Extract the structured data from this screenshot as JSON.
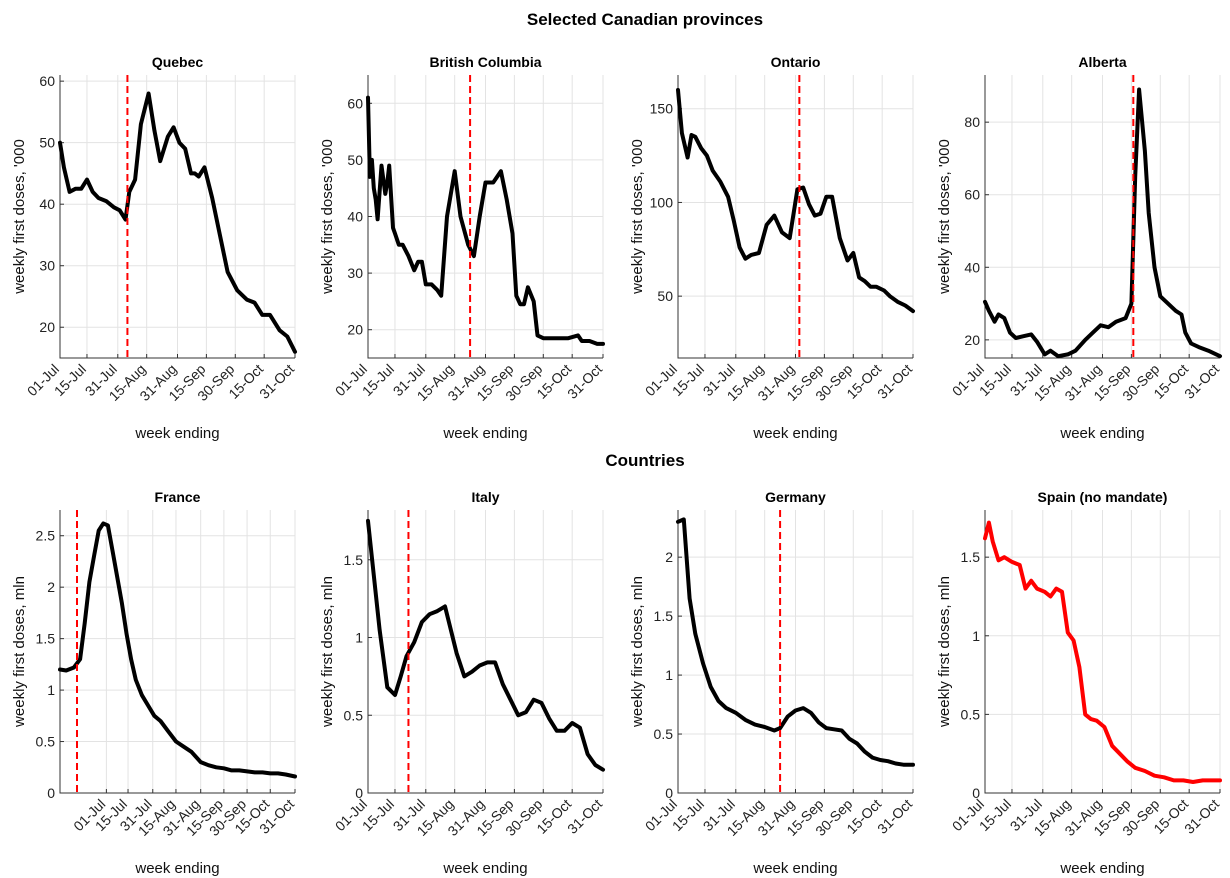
{
  "figure": {
    "section_titles": [
      "Selected Canadian provinces",
      "Countries"
    ]
  },
  "chart_data": [
    {
      "type": "line",
      "title": "Quebec",
      "xlabel": "week ending",
      "ylabel": "weekly first doses, '000",
      "x_ticks": [
        "01-Jul",
        "15-Jul",
        "31-Jul",
        "15-Aug",
        "31-Aug",
        "15-Sep",
        "30-Sep",
        "15-Oct",
        "31-Oct"
      ],
      "xlim": [
        "2021-07-01",
        "2021-10-31"
      ],
      "ylim": [
        15,
        61
      ],
      "y_ticks": [
        20,
        30,
        40,
        50,
        60
      ],
      "grid": true,
      "mandate_date": "2021-08-05",
      "series": [
        {
          "color": "#000000",
          "x": [
            "2021-07-01",
            "2021-07-03",
            "2021-07-06",
            "2021-07-09",
            "2021-07-12",
            "2021-07-15",
            "2021-07-18",
            "2021-07-21",
            "2021-07-25",
            "2021-07-29",
            "2021-08-01",
            "2021-08-04",
            "2021-08-06",
            "2021-08-09",
            "2021-08-12",
            "2021-08-16",
            "2021-08-19",
            "2021-08-22",
            "2021-08-26",
            "2021-08-29",
            "2021-09-01",
            "2021-09-04",
            "2021-09-07",
            "2021-09-09",
            "2021-09-11",
            "2021-09-14",
            "2021-09-18",
            "2021-09-22",
            "2021-09-26",
            "2021-10-01",
            "2021-10-06",
            "2021-10-10",
            "2021-10-14",
            "2021-10-18",
            "2021-10-23",
            "2021-10-27",
            "2021-10-31"
          ],
          "y": [
            50,
            46,
            42,
            42.5,
            42.5,
            44,
            42,
            41,
            40.5,
            39.5,
            39,
            37.5,
            42,
            44,
            53,
            58,
            52,
            47,
            51,
            52.5,
            50,
            49,
            45,
            45,
            44.5,
            46,
            41,
            35,
            29,
            26,
            24.5,
            24,
            22,
            22,
            19.5,
            18.5,
            16
          ]
        }
      ]
    },
    {
      "type": "line",
      "title": "British Columbia",
      "xlabel": "week ending",
      "ylabel": "weekly first doses, '000",
      "x_ticks": [
        "01-Jul",
        "15-Jul",
        "31-Jul",
        "15-Aug",
        "31-Aug",
        "15-Sep",
        "30-Sep",
        "15-Oct",
        "31-Oct"
      ],
      "xlim": [
        "2021-07-01",
        "2021-10-31"
      ],
      "ylim": [
        15,
        65
      ],
      "y_ticks": [
        20,
        30,
        40,
        50,
        60
      ],
      "grid": true,
      "mandate_date": "2021-08-23",
      "series": [
        {
          "color": "#000000",
          "x": [
            "2021-07-01",
            "2021-07-02",
            "2021-07-03",
            "2021-07-04",
            "2021-07-05",
            "2021-07-06",
            "2021-07-08",
            "2021-07-10",
            "2021-07-11",
            "2021-07-12",
            "2021-07-14",
            "2021-07-15",
            "2021-07-17",
            "2021-07-19",
            "2021-07-22",
            "2021-07-25",
            "2021-07-27",
            "2021-07-29",
            "2021-07-31",
            "2021-08-03",
            "2021-08-06",
            "2021-08-08",
            "2021-08-11",
            "2021-08-15",
            "2021-08-18",
            "2021-08-22",
            "2021-08-25",
            "2021-08-28",
            "2021-08-31",
            "2021-09-04",
            "2021-09-08",
            "2021-09-11",
            "2021-09-14",
            "2021-09-16",
            "2021-09-18",
            "2021-09-20",
            "2021-09-22",
            "2021-09-25",
            "2021-09-27",
            "2021-09-30",
            "2021-10-02",
            "2021-10-05",
            "2021-10-08",
            "2021-10-13",
            "2021-10-18",
            "2021-10-20",
            "2021-10-24",
            "2021-10-28",
            "2021-10-31"
          ],
          "y": [
            61,
            47,
            50,
            45,
            43,
            39.5,
            49,
            44,
            46,
            49,
            38,
            37,
            35,
            35,
            33,
            30.5,
            32,
            32,
            28,
            28,
            27,
            26,
            40,
            48,
            40,
            35,
            33,
            40,
            46,
            46,
            48,
            43,
            37,
            26,
            24.5,
            24.5,
            27.5,
            25,
            19,
            18.5,
            18.5,
            18.5,
            18.5,
            18.5,
            19,
            18,
            18,
            17.5,
            17.5
          ]
        }
      ]
    },
    {
      "type": "line",
      "title": "Ontario",
      "xlabel": "week ending",
      "ylabel": "weekly first doses, '000",
      "x_ticks": [
        "01-Jul",
        "15-Jul",
        "31-Jul",
        "15-Aug",
        "31-Aug",
        "15-Sep",
        "30-Sep",
        "15-Oct",
        "31-Oct"
      ],
      "xlim": [
        "2021-07-01",
        "2021-10-31"
      ],
      "ylim": [
        17,
        168
      ],
      "y_ticks": [
        50,
        100,
        150
      ],
      "grid": true,
      "mandate_date": "2021-09-02",
      "series": [
        {
          "color": "#000000",
          "x": [
            "2021-07-01",
            "2021-07-03",
            "2021-07-06",
            "2021-07-08",
            "2021-07-10",
            "2021-07-13",
            "2021-07-16",
            "2021-07-19",
            "2021-07-23",
            "2021-07-27",
            "2021-07-30",
            "2021-08-02",
            "2021-08-05",
            "2021-08-08",
            "2021-08-12",
            "2021-08-16",
            "2021-08-20",
            "2021-08-24",
            "2021-08-28",
            "2021-09-01",
            "2021-09-04",
            "2021-09-07",
            "2021-09-10",
            "2021-09-13",
            "2021-09-16",
            "2021-09-19",
            "2021-09-23",
            "2021-09-27",
            "2021-09-30",
            "2021-10-03",
            "2021-10-06",
            "2021-10-09",
            "2021-10-12",
            "2021-10-16",
            "2021-10-19",
            "2021-10-23",
            "2021-10-27",
            "2021-10-31"
          ],
          "y": [
            160,
            137,
            124,
            136,
            135,
            129,
            125,
            117,
            111,
            103,
            90,
            76,
            70,
            72,
            73,
            88,
            93,
            84,
            81,
            107,
            108,
            99,
            93,
            94,
            103,
            103,
            81,
            69,
            73,
            60,
            58,
            55,
            55,
            53,
            50,
            47,
            45,
            42
          ]
        }
      ]
    },
    {
      "type": "line",
      "title": "Alberta",
      "xlabel": "week ending",
      "ylabel": "weekly first doses, '000",
      "x_ticks": [
        "01-Jul",
        "15-Jul",
        "31-Jul",
        "15-Aug",
        "31-Aug",
        "15-Sep",
        "30-Sep",
        "15-Oct",
        "31-Oct"
      ],
      "xlim": [
        "2021-07-01",
        "2021-10-31"
      ],
      "ylim": [
        15,
        93
      ],
      "y_ticks": [
        20,
        40,
        60,
        80
      ],
      "grid": true,
      "mandate_date": "2021-09-16",
      "series": [
        {
          "color": "#000000",
          "x": [
            "2021-07-01",
            "2021-07-03",
            "2021-07-06",
            "2021-07-08",
            "2021-07-11",
            "2021-07-14",
            "2021-07-17",
            "2021-07-21",
            "2021-07-25",
            "2021-07-28",
            "2021-08-01",
            "2021-08-04",
            "2021-08-08",
            "2021-08-13",
            "2021-08-17",
            "2021-08-22",
            "2021-08-26",
            "2021-08-30",
            "2021-09-03",
            "2021-09-07",
            "2021-09-12",
            "2021-09-15",
            "2021-09-17",
            "2021-09-19",
            "2021-09-22",
            "2021-09-24",
            "2021-09-27",
            "2021-09-30",
            "2021-10-04",
            "2021-10-08",
            "2021-10-11",
            "2021-10-13",
            "2021-10-16",
            "2021-10-20",
            "2021-10-25",
            "2021-10-31"
          ],
          "y": [
            30.5,
            28,
            25,
            27,
            26,
            22,
            20.5,
            21,
            21.5,
            19.5,
            16,
            17,
            15.5,
            16,
            17,
            20,
            22,
            24,
            23.5,
            25,
            26,
            30,
            65,
            89,
            72,
            55,
            40,
            32,
            30,
            28,
            27,
            22,
            19,
            18,
            17,
            15.5
          ]
        }
      ]
    },
    {
      "type": "line",
      "title": "France",
      "xlabel": "week ending",
      "ylabel": "weekly first doses, mln",
      "x_ticks": [
        "01-Jul",
        "15-Jul",
        "31-Jul",
        "15-Aug",
        "31-Aug",
        "15-Sep",
        "30-Sep",
        "15-Oct",
        "31-Oct"
      ],
      "xlim": [
        "2021-06-01",
        "2021-10-31"
      ],
      "ylim": [
        0,
        2.75
      ],
      "y_ticks": [
        0,
        0.5,
        1,
        1.5,
        2,
        2.5
      ],
      "grid": true,
      "mandate_date": "2021-06-12",
      "series": [
        {
          "color": "#000000",
          "x": [
            "2021-06-01",
            "2021-06-05",
            "2021-06-10",
            "2021-06-14",
            "2021-06-17",
            "2021-06-20",
            "2021-06-23",
            "2021-06-26",
            "2021-06-29",
            "2021-07-02",
            "2021-07-05",
            "2021-07-08",
            "2021-07-11",
            "2021-07-14",
            "2021-07-17",
            "2021-07-20",
            "2021-07-24",
            "2021-07-28",
            "2021-08-01",
            "2021-08-05",
            "2021-08-10",
            "2021-08-15",
            "2021-08-20",
            "2021-08-25",
            "2021-08-31",
            "2021-09-05",
            "2021-09-10",
            "2021-09-15",
            "2021-09-20",
            "2021-09-25",
            "2021-09-30",
            "2021-10-05",
            "2021-10-10",
            "2021-10-15",
            "2021-10-20",
            "2021-10-25",
            "2021-10-31"
          ],
          "y": [
            1.2,
            1.19,
            1.22,
            1.3,
            1.65,
            2.05,
            2.3,
            2.55,
            2.62,
            2.6,
            2.35,
            2.1,
            1.85,
            1.55,
            1.3,
            1.1,
            0.95,
            0.85,
            0.75,
            0.7,
            0.6,
            0.5,
            0.45,
            0.4,
            0.3,
            0.27,
            0.25,
            0.24,
            0.22,
            0.22,
            0.21,
            0.2,
            0.2,
            0.19,
            0.19,
            0.18,
            0.16
          ]
        }
      ]
    },
    {
      "type": "line",
      "title": "Italy",
      "xlabel": "week ending",
      "ylabel": "weekly first doses, mln",
      "x_ticks": [
        "01-Jul",
        "15-Jul",
        "31-Jul",
        "15-Aug",
        "31-Aug",
        "15-Sep",
        "30-Sep",
        "15-Oct",
        "31-Oct"
      ],
      "xlim": [
        "2021-07-01",
        "2021-10-31"
      ],
      "ylim": [
        0,
        1.82
      ],
      "y_ticks": [
        0,
        0.5,
        1,
        1.5
      ],
      "grid": true,
      "mandate_date": "2021-07-22",
      "series": [
        {
          "color": "#000000",
          "x": [
            "2021-07-01",
            "2021-07-04",
            "2021-07-07",
            "2021-07-11",
            "2021-07-15",
            "2021-07-18",
            "2021-07-21",
            "2021-07-25",
            "2021-07-29",
            "2021-08-02",
            "2021-08-06",
            "2021-08-10",
            "2021-08-13",
            "2021-08-16",
            "2021-08-20",
            "2021-08-24",
            "2021-08-28",
            "2021-09-01",
            "2021-09-05",
            "2021-09-09",
            "2021-09-13",
            "2021-09-17",
            "2021-09-21",
            "2021-09-25",
            "2021-09-29",
            "2021-10-03",
            "2021-10-07",
            "2021-10-11",
            "2021-10-15",
            "2021-10-19",
            "2021-10-23",
            "2021-10-27",
            "2021-10-31"
          ],
          "y": [
            1.75,
            1.4,
            1.05,
            0.68,
            0.63,
            0.75,
            0.88,
            0.97,
            1.1,
            1.15,
            1.17,
            1.2,
            1.05,
            0.9,
            0.75,
            0.78,
            0.82,
            0.84,
            0.84,
            0.7,
            0.6,
            0.5,
            0.52,
            0.6,
            0.58,
            0.48,
            0.4,
            0.4,
            0.45,
            0.42,
            0.25,
            0.18,
            0.15
          ]
        }
      ]
    },
    {
      "type": "line",
      "title": "Germany",
      "xlabel": "week ending",
      "ylabel": "weekly first doses, mln",
      "x_ticks": [
        "01-Jul",
        "15-Jul",
        "31-Jul",
        "15-Aug",
        "31-Aug",
        "15-Sep",
        "30-Sep",
        "15-Oct",
        "31-Oct"
      ],
      "xlim": [
        "2021-07-01",
        "2021-10-31"
      ],
      "ylim": [
        0,
        2.4
      ],
      "y_ticks": [
        0,
        0.5,
        1,
        1.5,
        2
      ],
      "grid": true,
      "mandate_date": "2021-08-23",
      "series": [
        {
          "color": "#000000",
          "x": [
            "2021-07-01",
            "2021-07-04",
            "2021-07-07",
            "2021-07-10",
            "2021-07-14",
            "2021-07-18",
            "2021-07-22",
            "2021-07-26",
            "2021-07-31",
            "2021-08-05",
            "2021-08-10",
            "2021-08-15",
            "2021-08-20",
            "2021-08-23",
            "2021-08-27",
            "2021-08-31",
            "2021-09-04",
            "2021-09-08",
            "2021-09-12",
            "2021-09-16",
            "2021-09-20",
            "2021-09-24",
            "2021-09-28",
            "2021-10-02",
            "2021-10-06",
            "2021-10-10",
            "2021-10-14",
            "2021-10-18",
            "2021-10-22",
            "2021-10-26",
            "2021-10-31"
          ],
          "y": [
            2.3,
            2.32,
            1.65,
            1.35,
            1.1,
            0.9,
            0.78,
            0.72,
            0.68,
            0.62,
            0.58,
            0.56,
            0.53,
            0.55,
            0.65,
            0.7,
            0.72,
            0.68,
            0.6,
            0.55,
            0.54,
            0.53,
            0.46,
            0.42,
            0.35,
            0.3,
            0.28,
            0.27,
            0.25,
            0.24,
            0.24
          ]
        }
      ]
    },
    {
      "type": "line",
      "title": "Spain (no mandate)",
      "xlabel": "week ending",
      "ylabel": "weekly first doses, mln",
      "x_ticks": [
        "01-Jul",
        "15-Jul",
        "31-Jul",
        "15-Aug",
        "31-Aug",
        "15-Sep",
        "30-Sep",
        "15-Oct",
        "31-Oct"
      ],
      "xlim": [
        "2021-07-01",
        "2021-10-31"
      ],
      "ylim": [
        0,
        1.8
      ],
      "y_ticks": [
        0,
        0.5,
        1,
        1.5
      ],
      "grid": true,
      "mandate_date": null,
      "series": [
        {
          "color": "#ff0000",
          "x": [
            "2021-07-01",
            "2021-07-03",
            "2021-07-05",
            "2021-07-08",
            "2021-07-11",
            "2021-07-15",
            "2021-07-19",
            "2021-07-22",
            "2021-07-25",
            "2021-07-28",
            "2021-08-01",
            "2021-08-04",
            "2021-08-07",
            "2021-08-10",
            "2021-08-13",
            "2021-08-16",
            "2021-08-19",
            "2021-08-22",
            "2021-08-25",
            "2021-08-28",
            "2021-09-01",
            "2021-09-05",
            "2021-09-09",
            "2021-09-13",
            "2021-09-17",
            "2021-09-22",
            "2021-09-27",
            "2021-10-02",
            "2021-10-07",
            "2021-10-12",
            "2021-10-17",
            "2021-10-22",
            "2021-10-27",
            "2021-10-31"
          ],
          "y": [
            1.62,
            1.72,
            1.6,
            1.48,
            1.5,
            1.47,
            1.45,
            1.3,
            1.35,
            1.3,
            1.28,
            1.25,
            1.3,
            1.28,
            1.02,
            0.97,
            0.8,
            0.5,
            0.47,
            0.46,
            0.42,
            0.3,
            0.25,
            0.2,
            0.16,
            0.14,
            0.11,
            0.1,
            0.08,
            0.08,
            0.07,
            0.08,
            0.08,
            0.08
          ]
        }
      ]
    }
  ]
}
